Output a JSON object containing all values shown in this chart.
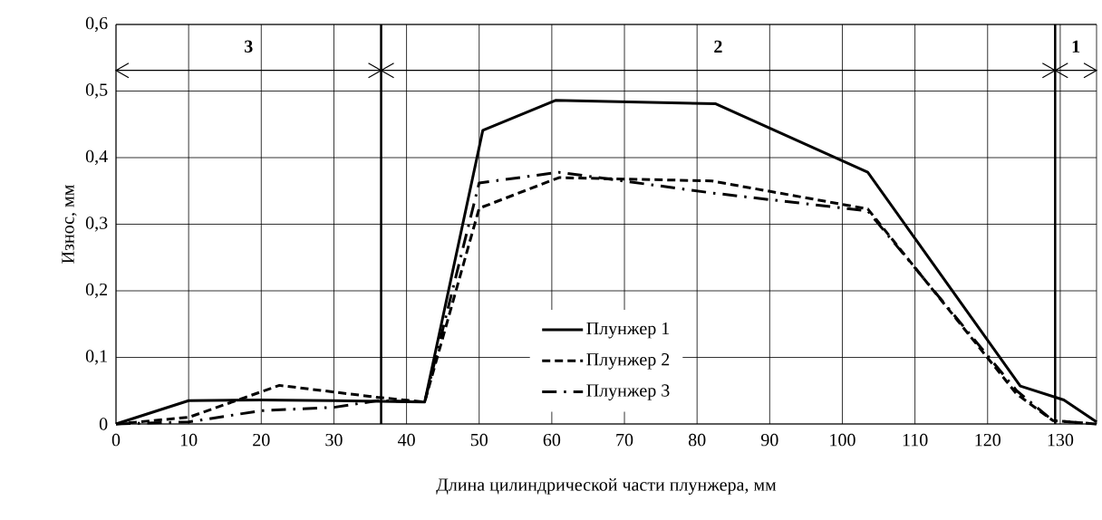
{
  "chart_data": {
    "type": "line",
    "xlabel": "Длина цилиндрической части плунжера, мм",
    "ylabel": "Износ, мм",
    "xlim": [
      0,
      135
    ],
    "ylim": [
      0,
      0.6
    ],
    "xticks": [
      0,
      10,
      20,
      30,
      40,
      50,
      60,
      70,
      80,
      90,
      100,
      110,
      120,
      130
    ],
    "yticks": [
      0,
      {
        "value": 0.1,
        "label": "0,1"
      },
      {
        "value": 0.2,
        "label": "0,2"
      },
      {
        "value": 0.3,
        "label": "0,3"
      },
      {
        "value": 0.4,
        "label": "0,4"
      },
      {
        "value": 0.5,
        "label": "0,5"
      },
      {
        "value": 0.6,
        "label": "0,6"
      }
    ],
    "grid": true,
    "legend": "bottom",
    "marker": "none",
    "series": [
      {
        "name": "Плунжер 1",
        "color": "#000000",
        "line_style": "solid",
        "x": [
          0,
          10,
          20,
          30,
          42.5,
          50.5,
          60.5,
          82.5,
          103.5,
          124.5,
          130.5,
          135
        ],
        "values": [
          0,
          0.035,
          0.036,
          0.035,
          0.033,
          0.441,
          0.486,
          0.481,
          0.378,
          0.057,
          0.036,
          0.003
        ]
      },
      {
        "name": "Плунжер 2",
        "color": "#000000",
        "line_style": "dashed",
        "x": [
          0,
          10,
          22.5,
          36,
          42.5,
          50,
          61,
          82,
          103.5,
          124,
          129,
          135
        ],
        "values": [
          0,
          0.01,
          0.058,
          0.04,
          0.033,
          0.324,
          0.37,
          0.365,
          0.323,
          0.045,
          0.005,
          0
        ]
      },
      {
        "name": "Плунжер 3",
        "color": "#000000",
        "line_style": "dashdot",
        "x": [
          0,
          10,
          20,
          30,
          36,
          42.5,
          50,
          61,
          82,
          103.5,
          124,
          129,
          135
        ],
        "values": [
          0,
          0.003,
          0.02,
          0.025,
          0.035,
          0.033,
          0.362,
          0.378,
          0.347,
          0.32,
          0.05,
          0.005,
          0
        ]
      }
    ],
    "ref_lines": [
      {
        "axis": "x",
        "value": 36.5,
        "color": "#000000"
      },
      {
        "axis": "x",
        "value": 129.3,
        "color": "#000000"
      }
    ],
    "annotations": [
      "3",
      "2",
      "1"
    ]
  }
}
